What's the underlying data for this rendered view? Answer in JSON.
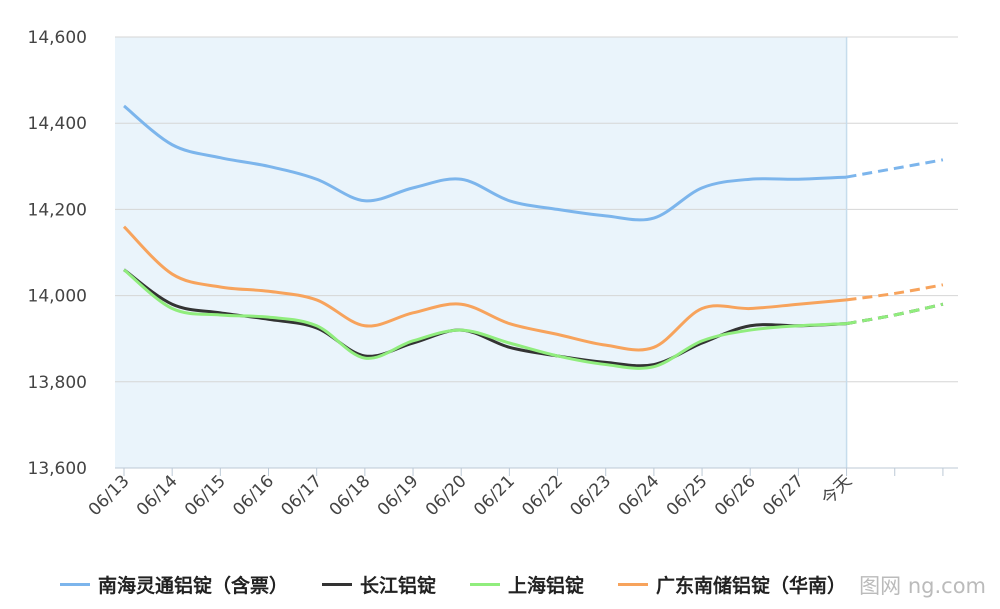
{
  "chart_data": {
    "type": "line",
    "title": "",
    "xlabel": "",
    "ylabel": "",
    "ylim": [
      13600,
      14600
    ],
    "yticks": [
      "14,600",
      "14,400",
      "14,200",
      "14,000",
      "13,800",
      "13,600"
    ],
    "ytick_values": [
      14600,
      14400,
      14200,
      14000,
      13800,
      13600
    ],
    "categories": [
      "06/13",
      "06/14",
      "06/15",
      "06/16",
      "06/17",
      "06/18",
      "06/19",
      "06/20",
      "06/21",
      "06/22",
      "06/23",
      "06/24",
      "06/25",
      "06/26",
      "06/27",
      "今天",
      "",
      ""
    ],
    "today_index": 15,
    "grid": true,
    "legend_position": "bottom",
    "series": [
      {
        "name": "南海灵通铝锭（含票）",
        "color": "#7cb5ec",
        "values": [
          14440,
          14350,
          14320,
          14300,
          14270,
          14220,
          14250,
          14270,
          14220,
          14200,
          14185,
          14180,
          14250,
          14270,
          14270,
          14275,
          14295,
          14315
        ]
      },
      {
        "name": "长江铝锭",
        "color": "#333333",
        "values": [
          14060,
          13980,
          13960,
          13945,
          13925,
          13860,
          13890,
          13920,
          13880,
          13860,
          13845,
          13840,
          13890,
          13930,
          13930,
          13935,
          13955,
          13980
        ]
      },
      {
        "name": "上海铝锭",
        "color": "#90ed7d",
        "values": [
          14060,
          13970,
          13955,
          13950,
          13930,
          13855,
          13895,
          13920,
          13890,
          13860,
          13840,
          13835,
          13895,
          13920,
          13930,
          13935,
          13955,
          13980
        ]
      },
      {
        "name": "广东南储铝锭（华南）",
        "color": "#f7a35c",
        "values": [
          14160,
          14050,
          14020,
          14010,
          13990,
          13930,
          13960,
          13980,
          13935,
          13910,
          13885,
          13880,
          13970,
          13970,
          13980,
          13990,
          14005,
          14025
        ]
      }
    ]
  },
  "watermark": "图网 ng.com"
}
